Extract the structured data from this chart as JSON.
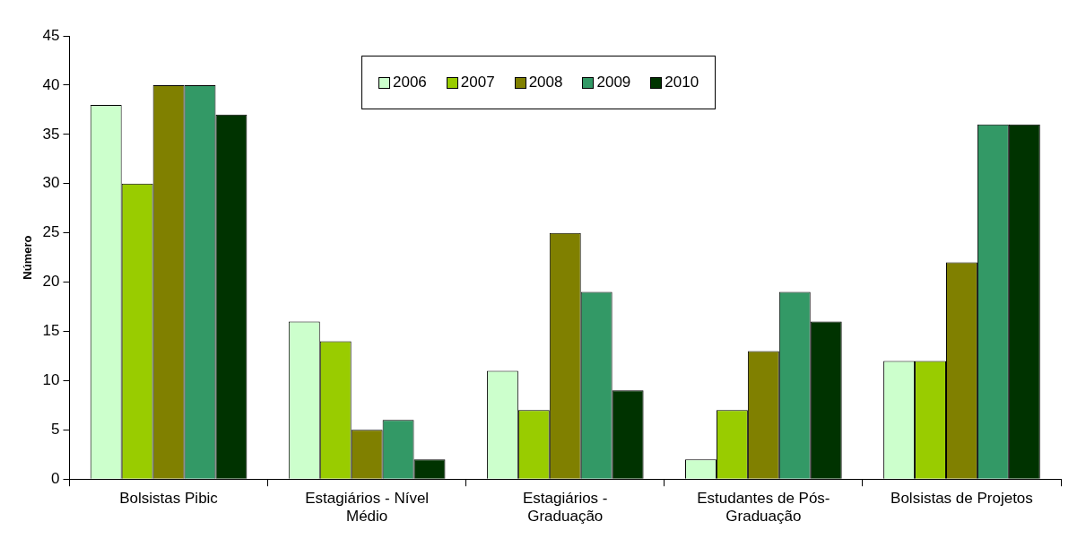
{
  "chart_data": {
    "type": "bar",
    "ylabel": "Número",
    "categories": [
      "Bolsistas Pibic",
      "Estagiários - Nível Médio",
      "Estagiários - Graduação",
      "Estudantes de Pós-Graduação",
      "Bolsistas de Projetos"
    ],
    "series": [
      {
        "name": "2006",
        "color": "#ccffcc",
        "values": [
          38,
          16,
          11,
          2,
          12
        ]
      },
      {
        "name": "2007",
        "color": "#99cc00",
        "values": [
          30,
          14,
          7,
          7,
          12
        ]
      },
      {
        "name": "2008",
        "color": "#808000",
        "values": [
          40,
          5,
          25,
          13,
          22
        ]
      },
      {
        "name": "2009",
        "color": "#339966",
        "values": [
          40,
          6,
          19,
          19,
          36
        ]
      },
      {
        "name": "2010",
        "color": "#003300",
        "values": [
          37,
          2,
          9,
          16,
          36
        ]
      }
    ],
    "ylim": [
      0,
      45
    ],
    "yticks": [
      0,
      5,
      10,
      15,
      20,
      25,
      30,
      35,
      40,
      45
    ],
    "grid": false,
    "legend": "top"
  }
}
